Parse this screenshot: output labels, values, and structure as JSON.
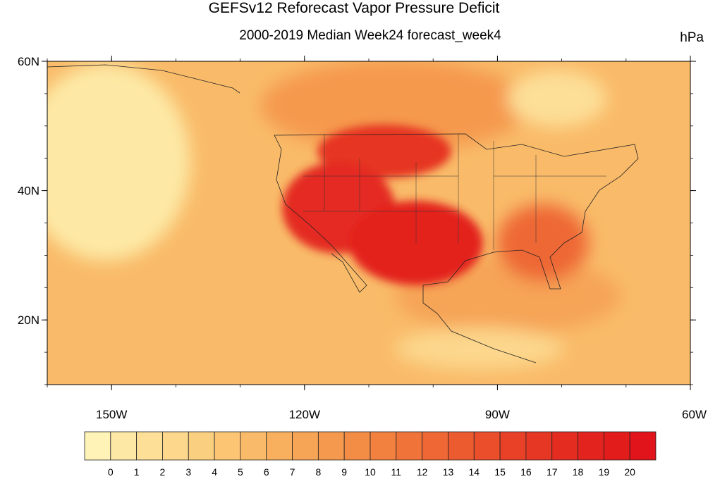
{
  "title": "GEFSv12 Reforecast Vapor Pressure Deficit",
  "subtitle": "2000-2019 Median Week24 forecast_week4",
  "units": "hPa",
  "map": {
    "lon_range": [
      -160,
      -60
    ],
    "lat_range": [
      10,
      60
    ],
    "lat_ticks": [
      {
        "value": 60,
        "label": "60N"
      },
      {
        "value": 40,
        "label": "40N"
      },
      {
        "value": 20,
        "label": "20N"
      }
    ],
    "lon_ticks": [
      {
        "value": -150,
        "label": "150W"
      },
      {
        "value": -120,
        "label": "120W"
      },
      {
        "value": -90,
        "label": "90W"
      },
      {
        "value": -60,
        "label": "60W"
      }
    ],
    "regions": [
      {
        "name": "background-field",
        "level": 6
      },
      {
        "name": "western-north-pacific-low",
        "level": 1
      },
      {
        "name": "canada-prairies",
        "level": 9
      },
      {
        "name": "hudson-bay-low",
        "level": 2
      },
      {
        "name": "great-basin-core",
        "level": 18
      },
      {
        "name": "southwest-desert-core",
        "level": 19
      },
      {
        "name": "northern-rockies",
        "level": 17
      },
      {
        "name": "southeast-us",
        "level": 13
      },
      {
        "name": "gulf-of-mexico",
        "level": 8
      },
      {
        "name": "central-america-low",
        "level": 3
      }
    ]
  },
  "colorbar": {
    "labels": [
      "0",
      "1",
      "2",
      "3",
      "4",
      "5",
      "6",
      "7",
      "8",
      "9",
      "10",
      "11",
      "12",
      "13",
      "14",
      "15",
      "16",
      "17",
      "18",
      "19",
      "20"
    ],
    "colors": [
      "#fff3b8",
      "#fde9a5",
      "#fddf98",
      "#fcd78c",
      "#fbcf80",
      "#fbc574",
      "#f9bb69",
      "#f8b05f",
      "#f6a456",
      "#f5994e",
      "#f38d46",
      "#f2803f",
      "#f07439",
      "#ee6734",
      "#ec5a2f",
      "#ea4e2b",
      "#e84127",
      "#e63624",
      "#e42c21",
      "#e3231e",
      "#e21b1b",
      "#e0141a"
    ]
  }
}
